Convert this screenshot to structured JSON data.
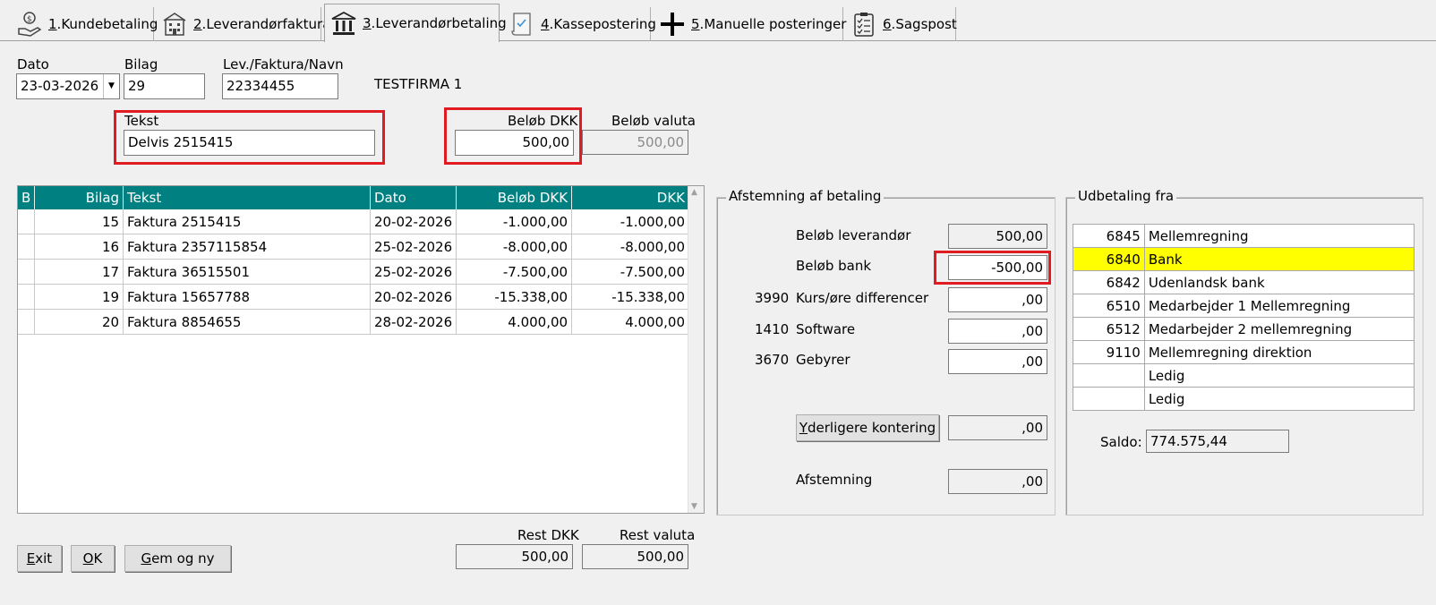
{
  "tabs": [
    {
      "key": "1",
      "label": "Kundebetaling",
      "icon": "hand-money-icon"
    },
    {
      "key": "2",
      "label": "Leverandørfaktura",
      "icon": "building-icon"
    },
    {
      "key": "3",
      "label": "Leverandørbetaling",
      "icon": "bank-icon",
      "active": true
    },
    {
      "key": "4",
      "label": "Kassepostering",
      "icon": "scroll-icon"
    },
    {
      "key": "5",
      "label": "Manuelle posteringer",
      "icon": "plus-icon"
    },
    {
      "key": "6",
      "label": "Sagspost",
      "icon": "checklist-icon"
    }
  ],
  "header": {
    "dato_label": "Dato",
    "dato_value": "23-03-2026",
    "bilag_label": "Bilag",
    "bilag_value": "29",
    "lev_label": "Lev./Faktura/Navn",
    "lev_value": "22334455",
    "company": "TESTFIRMA 1",
    "tekst_label": "Tekst",
    "tekst_value": "Delvis 2515415",
    "belob_dkk_label": "Beløb DKK",
    "belob_dkk_value": "500,00",
    "belob_valuta_label": "Beløb valuta",
    "belob_valuta_value": "500,00"
  },
  "grid": {
    "columns": [
      "B",
      "Bilag",
      "Tekst",
      "Dato",
      "Beløb DKK",
      "DKK"
    ],
    "rows": [
      {
        "b": "",
        "bilag": "15",
        "tekst": "Faktura 2515415",
        "dato": "20-02-2026",
        "belob": "-1.000,00",
        "dkk": "-1.000,00"
      },
      {
        "b": "",
        "bilag": "16",
        "tekst": "Faktura 2357115854",
        "dato": "25-02-2026",
        "belob": "-8.000,00",
        "dkk": "-8.000,00"
      },
      {
        "b": "",
        "bilag": "17",
        "tekst": "Faktura 36515501",
        "dato": "25-02-2026",
        "belob": "-7.500,00",
        "dkk": "-7.500,00"
      },
      {
        "b": "",
        "bilag": "19",
        "tekst": "Faktura 15657788",
        "dato": "20-02-2026",
        "belob": "-15.338,00",
        "dkk": "-15.338,00"
      },
      {
        "b": "",
        "bilag": "20",
        "tekst": "Faktura 8854655",
        "dato": "28-02-2026",
        "belob": "4.000,00",
        "dkk": "4.000,00"
      }
    ]
  },
  "afstemning": {
    "title": "Afstemning af betaling",
    "belob_lev_label": "Beløb leverandør",
    "belob_lev_value": "500,00",
    "belob_bank_label": "Beløb bank",
    "belob_bank_value": "-500,00",
    "kurs_code": "3990",
    "kurs_label": "Kurs/øre differencer",
    "kurs_value": ",00",
    "software_code": "1410",
    "software_label": "Software",
    "software_value": ",00",
    "gebyrer_code": "3670",
    "gebyrer_label": "Gebyrer",
    "gebyrer_value": ",00",
    "yderligere_button": "derligere kontering",
    "yderligere_button_key": "Y",
    "yderligere_value": ",00",
    "afstemning_label": "Afstemning",
    "afstemning_value": ",00"
  },
  "udbetaling": {
    "title": "Udbetaling fra",
    "accounts": [
      {
        "no": "6845",
        "name": "Mellemregning"
      },
      {
        "no": "6840",
        "name": "Bank",
        "selected": true
      },
      {
        "no": "6842",
        "name": "Udenlandsk bank"
      },
      {
        "no": "6510",
        "name": "Medarbejder 1 Mellemregning"
      },
      {
        "no": "6512",
        "name": "Medarbejder 2 mellemregning"
      },
      {
        "no": "9110",
        "name": "Mellemregning direktion"
      },
      {
        "no": "",
        "name": "Ledig"
      },
      {
        "no": "",
        "name": "Ledig"
      }
    ],
    "saldo_label": "Saldo:",
    "saldo_value": "774.575,44"
  },
  "footer": {
    "exit_key": "E",
    "exit_rest": "xit",
    "ok_key": "O",
    "ok_rest": "K",
    "gem_key": "G",
    "gem_rest": "em og ny",
    "rest_dkk_label": "Rest DKK",
    "rest_dkk_value": "500,00",
    "rest_valuta_label": "Rest valuta",
    "rest_valuta_value": "500,00"
  },
  "colors": {
    "grid_header": "#008080",
    "highlight": "#ffff00",
    "annotation": "#e11b22"
  }
}
